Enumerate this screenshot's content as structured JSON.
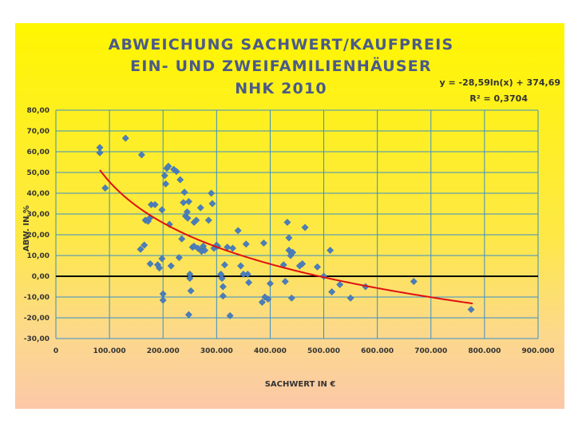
{
  "chart_data": {
    "type": "scatter",
    "title_lines": [
      "ABWEICHUNG SACHWERT/KAUFPREIS",
      "EIN- UND ZWEIFAMILIENHÄUSER",
      "NHK 2010"
    ],
    "xlabel": "SACHWERT IN €",
    "ylabel": "ABW. IN %",
    "xlim": [
      0,
      900000
    ],
    "ylim": [
      -30,
      80
    ],
    "x_ticks": [
      0,
      100000,
      200000,
      300000,
      400000,
      500000,
      600000,
      700000,
      800000,
      900000
    ],
    "x_tick_labels": [
      "0",
      "100.000",
      "200.000",
      "300.000",
      "400.000",
      "500.000",
      "600.000",
      "700.000",
      "800.000",
      "900.000"
    ],
    "y_ticks": [
      -30,
      -20,
      -10,
      0,
      10,
      20,
      30,
      40,
      50,
      60,
      70,
      80
    ],
    "y_tick_labels": [
      "-30,00",
      "-20,00",
      "-10,00",
      "0,00",
      "10,00",
      "20,00",
      "30,00",
      "40,00",
      "50,00",
      "60,00",
      "70,00",
      "80,00"
    ],
    "grid": true,
    "trendline": {
      "type": "logarithmic",
      "a": -28.59,
      "b": 374.69,
      "x_range": [
        82000,
        778000
      ],
      "equation_label": "y = -28,59ln(x) + 374,69",
      "r2_label": "R² = 0,3704",
      "color": "#e01010"
    },
    "zero_line_color": "#000000",
    "marker_color": "#4a7ebb",
    "points": [
      [
        82000,
        62
      ],
      [
        82000,
        59.5
      ],
      [
        92000,
        42.5
      ],
      [
        130000,
        66.5
      ],
      [
        160000,
        58.5
      ],
      [
        158000,
        13
      ],
      [
        165000,
        15
      ],
      [
        167000,
        27
      ],
      [
        172000,
        26.5
      ],
      [
        175000,
        28
      ],
      [
        178000,
        34.5
      ],
      [
        185000,
        34.5
      ],
      [
        176000,
        6
      ],
      [
        190000,
        5.5
      ],
      [
        193000,
        4
      ],
      [
        198000,
        32
      ],
      [
        198000,
        8.5
      ],
      [
        200000,
        -8.5
      ],
      [
        200000,
        -11.5
      ],
      [
        203000,
        48.5
      ],
      [
        205000,
        44.5
      ],
      [
        207000,
        52
      ],
      [
        210000,
        53
      ],
      [
        212000,
        25
      ],
      [
        215000,
        5
      ],
      [
        220000,
        51.5
      ],
      [
        225000,
        50.5
      ],
      [
        230000,
        9
      ],
      [
        232000,
        46.5
      ],
      [
        235000,
        18
      ],
      [
        238000,
        35.5
      ],
      [
        240000,
        40.5
      ],
      [
        242000,
        29
      ],
      [
        245000,
        31
      ],
      [
        246000,
        28
      ],
      [
        248000,
        36
      ],
      [
        250000,
        1
      ],
      [
        250000,
        -1
      ],
      [
        252000,
        -7
      ],
      [
        248000,
        -18.5
      ],
      [
        255000,
        14
      ],
      [
        258000,
        14.5
      ],
      [
        258000,
        26
      ],
      [
        262000,
        27
      ],
      [
        265000,
        13.5
      ],
      [
        270000,
        33
      ],
      [
        272000,
        12
      ],
      [
        275000,
        14.5
      ],
      [
        278000,
        12.5
      ],
      [
        285000,
        27
      ],
      [
        290000,
        40
      ],
      [
        292000,
        35
      ],
      [
        295000,
        13.5
      ],
      [
        300000,
        15
      ],
      [
        302000,
        14.5
      ],
      [
        308000,
        1
      ],
      [
        310000,
        -1
      ],
      [
        312000,
        -5
      ],
      [
        312000,
        -9.5
      ],
      [
        315000,
        5.5
      ],
      [
        320000,
        14
      ],
      [
        325000,
        -19
      ],
      [
        330000,
        13.5
      ],
      [
        340000,
        22
      ],
      [
        345000,
        5
      ],
      [
        350000,
        1
      ],
      [
        355000,
        15.5
      ],
      [
        358000,
        1
      ],
      [
        360000,
        -3
      ],
      [
        385000,
        -12.5
      ],
      [
        388000,
        16
      ],
      [
        390000,
        -10
      ],
      [
        396000,
        -11
      ],
      [
        400000,
        -3.5
      ],
      [
        425000,
        5.5
      ],
      [
        428000,
        -2.5
      ],
      [
        432000,
        26
      ],
      [
        435000,
        18.5
      ],
      [
        435000,
        12.5
      ],
      [
        438000,
        10
      ],
      [
        440000,
        -10.5
      ],
      [
        442000,
        11.5
      ],
      [
        455000,
        5
      ],
      [
        460000,
        6
      ],
      [
        465000,
        23.5
      ],
      [
        488000,
        4.5
      ],
      [
        500000,
        0
      ],
      [
        512000,
        12.5
      ],
      [
        515000,
        -7.5
      ],
      [
        530000,
        -4
      ],
      [
        550000,
        -10.5
      ],
      [
        578000,
        -5
      ],
      [
        668000,
        -2.5
      ],
      [
        775000,
        -16
      ]
    ]
  }
}
